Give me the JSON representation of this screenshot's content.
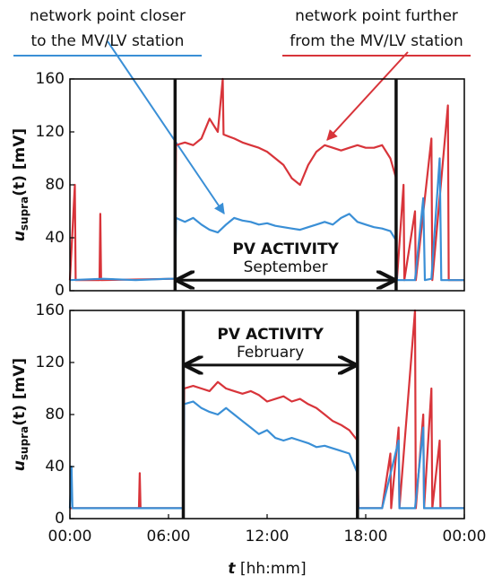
{
  "chart_data": [
    {
      "type": "line",
      "xlim": [
        0,
        24
      ],
      "ylim": [
        0,
        160
      ],
      "yticks": [
        0,
        40,
        80,
        120,
        160
      ],
      "y_label": {
        "base": "u",
        "sub": "supra",
        "rest": "(t) [mV]"
      },
      "vlines": [
        6.4,
        19.85
      ],
      "annotations": [
        "PV ACTIVITY",
        "September"
      ],
      "notes": [
        {
          "lines": [
            "network point closer",
            "to the MV/LV station"
          ],
          "color": "#3a8fd6"
        },
        {
          "lines": [
            "network point further",
            "from the MV/LV station"
          ],
          "color": "#d8343a"
        }
      ],
      "series": [
        {
          "name": "network point further from the MV/LV station",
          "color": "#d8343a",
          "x": [
            0,
            0.3,
            0.35,
            1.8,
            1.85,
            1.9,
            6.4,
            6.45,
            7,
            7.5,
            8,
            8.5,
            9,
            9.3,
            9.35,
            10,
            10.5,
            11,
            11.5,
            12,
            12.5,
            13,
            13.5,
            14,
            14.5,
            15,
            15.5,
            16,
            16.5,
            17,
            17.5,
            18,
            18.5,
            19,
            19.5,
            19.85,
            19.9,
            20.3,
            20.35,
            21,
            21.05,
            22,
            22.05,
            23,
            23.05,
            24
          ],
          "values": [
            8,
            80,
            8,
            8,
            58,
            8,
            9,
            110,
            112,
            110,
            115,
            130,
            120,
            160,
            118,
            115,
            112,
            110,
            108,
            105,
            100,
            95,
            85,
            80,
            95,
            105,
            110,
            108,
            106,
            108,
            110,
            108,
            108,
            110,
            100,
            85,
            8,
            80,
            8,
            60,
            8,
            115,
            8,
            140,
            8,
            8
          ]
        },
        {
          "name": "network point closer to the MV/LV station",
          "color": "#3a8fd6",
          "x": [
            0,
            2,
            4,
            6,
            6.4,
            6.45,
            7,
            7.5,
            8,
            8.5,
            9,
            9.5,
            10,
            10.5,
            11,
            11.5,
            12,
            12.5,
            13,
            13.5,
            14,
            14.5,
            15,
            15.5,
            16,
            16.5,
            17,
            17.5,
            18,
            18.5,
            19,
            19.5,
            19.85,
            19.9,
            21,
            21.5,
            21.6,
            22,
            22.5,
            22.6,
            24
          ],
          "values": [
            8,
            9,
            8,
            9,
            9,
            55,
            52,
            55,
            50,
            46,
            44,
            50,
            55,
            53,
            52,
            50,
            51,
            49,
            48,
            47,
            46,
            48,
            50,
            52,
            50,
            55,
            58,
            52,
            50,
            48,
            47,
            45,
            38,
            8,
            8,
            70,
            8,
            9,
            100,
            8,
            8
          ]
        }
      ]
    },
    {
      "type": "line",
      "xlim": [
        0,
        24
      ],
      "ylim": [
        0,
        160
      ],
      "yticks": [
        0,
        40,
        80,
        120,
        160
      ],
      "xticks": [
        {
          "value": 0,
          "label": "00:00"
        },
        {
          "value": 6,
          "label": "06:00"
        },
        {
          "value": 12,
          "label": "12:00"
        },
        {
          "value": 18,
          "label": "18:00"
        },
        {
          "value": 24,
          "label": "00:00"
        }
      ],
      "y_label": {
        "base": "u",
        "sub": "supra",
        "rest": "(t) [mV]"
      },
      "x_label": {
        "base": "t",
        "rest": " [hh:mm]"
      },
      "vlines": [
        6.9,
        17.5
      ],
      "annotations": [
        "PV ACTIVITY",
        "February"
      ],
      "series": [
        {
          "name": "network point further from the MV/LV station",
          "color": "#d8343a",
          "x": [
            0,
            4.2,
            4.25,
            4.3,
            6.9,
            6.95,
            7.5,
            8,
            8.5,
            9,
            9.5,
            10,
            10.5,
            11,
            11.5,
            12,
            12.5,
            13,
            13.5,
            14,
            14.5,
            15,
            15.5,
            16,
            16.5,
            17,
            17.5,
            17.55,
            19,
            19.5,
            19.55,
            20,
            20.05,
            21,
            21.05,
            21.5,
            21.55,
            22,
            22.05,
            22.5,
            22.55,
            24
          ],
          "values": [
            8,
            8,
            35,
            8,
            8,
            100,
            102,
            100,
            98,
            105,
            100,
            98,
            96,
            98,
            95,
            90,
            92,
            94,
            90,
            92,
            88,
            85,
            80,
            75,
            72,
            68,
            60,
            8,
            8,
            50,
            8,
            70,
            8,
            160,
            8,
            80,
            8,
            100,
            8,
            60,
            8,
            8
          ]
        },
        {
          "name": "network point closer to the MV/LV station",
          "color": "#3a8fd6",
          "x": [
            0,
            0.1,
            0.15,
            6.9,
            6.95,
            7.5,
            8,
            8.5,
            9,
            9.5,
            10,
            10.5,
            11,
            11.5,
            12,
            12.5,
            13,
            13.5,
            14,
            14.5,
            15,
            15.5,
            16,
            16.5,
            17,
            17.5,
            17.55,
            19,
            20,
            20.05,
            21,
            21.5,
            21.55,
            24
          ],
          "values": [
            8,
            40,
            8,
            8,
            88,
            90,
            85,
            82,
            80,
            85,
            80,
            75,
            70,
            65,
            68,
            62,
            60,
            62,
            60,
            58,
            55,
            56,
            54,
            52,
            50,
            35,
            8,
            8,
            60,
            8,
            8,
            70,
            8,
            8
          ]
        }
      ]
    }
  ]
}
